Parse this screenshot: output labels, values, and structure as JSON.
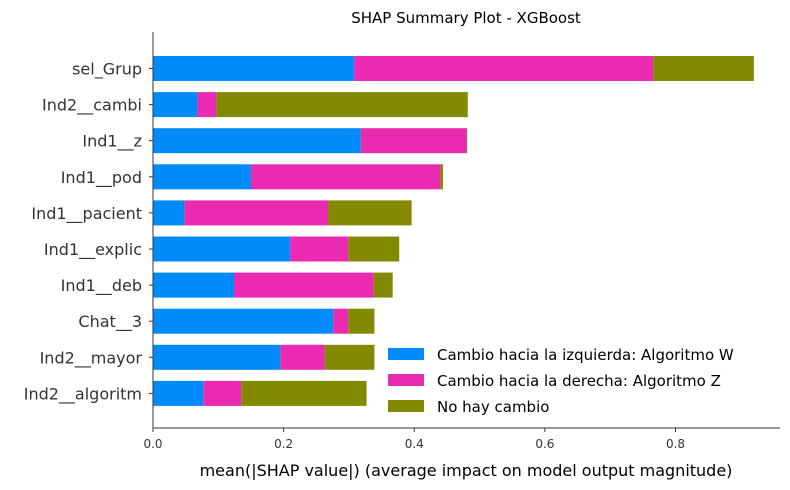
{
  "chart_data": {
    "type": "bar",
    "orientation": "horizontal",
    "stacked": true,
    "title": "SHAP Summary Plot - XGBoost",
    "xlabel": "mean(|SHAP value|) (average impact on model output magnitude)",
    "ylabel": "",
    "xlim": [
      0,
      0.96
    ],
    "xticks": [
      "0.0",
      "0.2",
      "0.4",
      "0.6",
      "0.8"
    ],
    "xtick_values": [
      0,
      0.2,
      0.4,
      0.6,
      0.8
    ],
    "grid": false,
    "legend_position": "lower-right",
    "categories": [
      "sel_Grup",
      "Ind2__cambi",
      "Ind1__z",
      "Ind1__pod",
      "Ind1__pacient",
      "Ind1__explic",
      "Ind1__deb",
      "Chat__3",
      "Ind2__mayor",
      "Ind2__algoritm"
    ],
    "series": [
      {
        "name": "Cambio hacia la izquierda: Algoritmo W",
        "color": "#008bfb",
        "values": [
          0.308,
          0.068,
          0.318,
          0.15,
          0.048,
          0.21,
          0.124,
          0.276,
          0.195,
          0.077
        ]
      },
      {
        "name": "Cambio hacia la derecha: Algoritmo Z",
        "color": "#ea2bb1",
        "values": [
          0.458,
          0.029,
          0.162,
          0.29,
          0.22,
          0.089,
          0.214,
          0.023,
          0.068,
          0.058
        ]
      },
      {
        "name": "No hay cambio",
        "color": "#838900",
        "values": [
          0.154,
          0.385,
          0.001,
          0.004,
          0.128,
          0.078,
          0.029,
          0.04,
          0.076,
          0.192
        ]
      }
    ]
  }
}
